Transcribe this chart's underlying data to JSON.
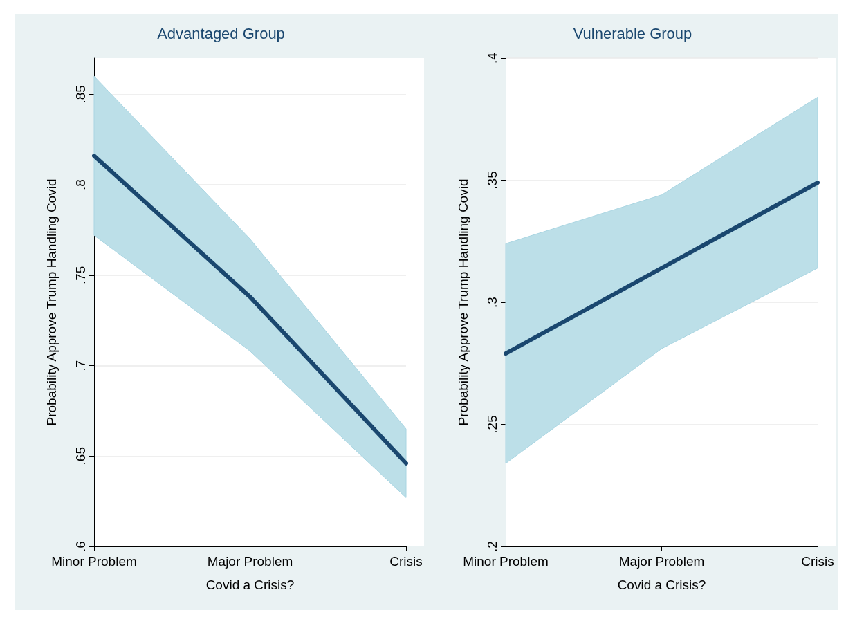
{
  "chart_data": [
    {
      "type": "line",
      "title": "Advantaged Group",
      "xlabel": "Covid a Crisis?",
      "ylabel": "Probability Approve Trump Handling Covid",
      "categories": [
        "Minor Problem",
        "Major Problem",
        "Crisis"
      ],
      "ylim": [
        0.6,
        0.87
      ],
      "yticks": [
        {
          "value": 0.6,
          "label": ".6"
        },
        {
          "value": 0.65,
          "label": ".65"
        },
        {
          "value": 0.7,
          "label": ".7"
        },
        {
          "value": 0.75,
          "label": ".75"
        },
        {
          "value": 0.8,
          "label": ".8"
        },
        {
          "value": 0.85,
          "label": ".85"
        }
      ],
      "grid": "y",
      "marker": "none",
      "line_style": "solid",
      "series": [
        {
          "color": "#1a476f",
          "values": [
            0.816,
            0.738,
            0.646
          ],
          "lower": [
            0.772,
            0.708,
            0.627
          ],
          "upper": [
            0.86,
            0.77,
            0.665
          ]
        }
      ]
    },
    {
      "type": "line",
      "title": "Vulnerable Group",
      "xlabel": "Covid a Crisis?",
      "ylabel": "Probability Approve Trump Handling Covid",
      "categories": [
        "Minor Problem",
        "Major Problem",
        "Crisis"
      ],
      "ylim": [
        0.2,
        0.4
      ],
      "yticks": [
        {
          "value": 0.2,
          "label": ".2"
        },
        {
          "value": 0.25,
          "label": ".25"
        },
        {
          "value": 0.3,
          "label": ".3"
        },
        {
          "value": 0.35,
          "label": ".35"
        },
        {
          "value": 0.4,
          "label": ".4"
        }
      ],
      "grid": "y",
      "marker": "none",
      "line_style": "solid",
      "series": [
        {
          "color": "#1a476f",
          "values": [
            0.279,
            0.314,
            0.349
          ],
          "lower": [
            0.234,
            0.281,
            0.314
          ],
          "upper": [
            0.324,
            0.344,
            0.384
          ]
        }
      ]
    }
  ]
}
